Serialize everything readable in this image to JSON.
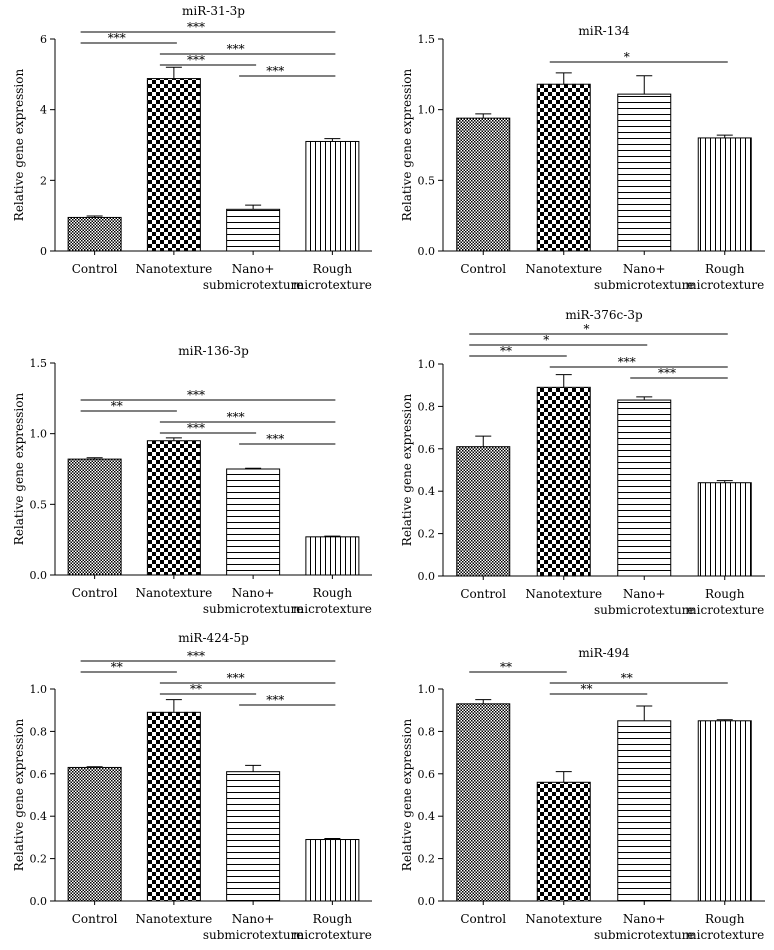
{
  "chart_data": [
    {
      "type": "bar",
      "title": "miR-31-3p",
      "ylabel": "Relative gene expression",
      "categories": [
        "Control",
        "Nanotexture",
        "Nano+\nsubmicrotexture",
        "Rough\nmicrotexture"
      ],
      "values": [
        0.95,
        4.88,
        1.18,
        3.1
      ],
      "errors": [
        0.04,
        0.32,
        0.12,
        0.08
      ],
      "ylim": [
        0,
        6
      ],
      "yticks": [
        "0",
        "2",
        "4",
        "6"
      ],
      "tick_values": [
        0,
        2,
        4,
        6
      ],
      "significance": [
        {
          "from": 0,
          "to": 3,
          "label": "***"
        },
        {
          "from": 0,
          "to": 1,
          "label": "***"
        },
        {
          "from": 1,
          "to": 3,
          "label": "***"
        },
        {
          "from": 1,
          "to": 2,
          "label": "***"
        },
        {
          "from": 2,
          "to": 3,
          "label": "***"
        }
      ]
    },
    {
      "type": "bar",
      "title": "miR-134",
      "ylabel": "Relative gene expression",
      "categories": [
        "Control",
        "Nanotexture",
        "Nano+\nsubmicrotexture",
        "Rough\nmicrotexture"
      ],
      "values": [
        0.94,
        1.18,
        1.11,
        0.8
      ],
      "errors": [
        0.03,
        0.08,
        0.13,
        0.02
      ],
      "ylim": [
        0,
        1.5
      ],
      "yticks": [
        "0.0",
        "0.5",
        "1.0",
        "1.5"
      ],
      "tick_values": [
        0,
        0.5,
        1.0,
        1.5
      ],
      "significance": [
        {
          "from": 1,
          "to": 3,
          "label": "*"
        }
      ]
    },
    {
      "type": "bar",
      "title": "miR-136-3p",
      "ylabel": "Relative gene expression",
      "categories": [
        "Control",
        "Nanotexture",
        "Nano+\nsubmicrotexture",
        "Rough\nmicrotexture"
      ],
      "values": [
        0.82,
        0.95,
        0.75,
        0.27
      ],
      "errors": [
        0.01,
        0.02,
        0.005,
        0.005
      ],
      "ylim": [
        0,
        1.5
      ],
      "yticks": [
        "0.0",
        "0.5",
        "1.0",
        "1.5"
      ],
      "tick_values": [
        0,
        0.5,
        1.0,
        1.5
      ],
      "significance": [
        {
          "from": 0,
          "to": 3,
          "label": "***"
        },
        {
          "from": 0,
          "to": 1,
          "label": "**"
        },
        {
          "from": 1,
          "to": 3,
          "label": "***"
        },
        {
          "from": 1,
          "to": 2,
          "label": "***"
        },
        {
          "from": 2,
          "to": 3,
          "label": "***"
        }
      ]
    },
    {
      "type": "bar",
      "title": "miR-376c-3p",
      "ylabel": "Relative gene expression",
      "categories": [
        "Control",
        "Nanotexture",
        "Nano+\nsubmicrotexture",
        "Rough\nmicrotexture"
      ],
      "values": [
        0.61,
        0.89,
        0.83,
        0.44
      ],
      "errors": [
        0.05,
        0.06,
        0.015,
        0.01
      ],
      "ylim": [
        0,
        1.0
      ],
      "yticks": [
        "0.0",
        "0.2",
        "0.4",
        "0.6",
        "0.8",
        "1.0"
      ],
      "tick_values": [
        0,
        0.2,
        0.4,
        0.6,
        0.8,
        1.0
      ],
      "significance": [
        {
          "from": 0,
          "to": 3,
          "label": "*"
        },
        {
          "from": 0,
          "to": 2,
          "label": "*"
        },
        {
          "from": 0,
          "to": 1,
          "label": "**"
        },
        {
          "from": 1,
          "to": 3,
          "label": "***"
        },
        {
          "from": 2,
          "to": 3,
          "label": "***"
        }
      ]
    },
    {
      "type": "bar",
      "title": "miR-424-5p",
      "ylabel": "Relative gene expression",
      "categories": [
        "Control",
        "Nanotexture",
        "Nano+\nsubmicrotexture",
        "Rough\nmicrotexture"
      ],
      "values": [
        0.63,
        0.89,
        0.61,
        0.29
      ],
      "errors": [
        0.003,
        0.06,
        0.03,
        0.005
      ],
      "ylim": [
        0,
        1.0
      ],
      "yticks": [
        "0.0",
        "0.2",
        "0.4",
        "0.6",
        "0.8",
        "1.0"
      ],
      "tick_values": [
        0,
        0.2,
        0.4,
        0.6,
        0.8,
        1.0
      ],
      "significance": [
        {
          "from": 0,
          "to": 3,
          "label": "***"
        },
        {
          "from": 0,
          "to": 1,
          "label": "**"
        },
        {
          "from": 1,
          "to": 3,
          "label": "***"
        },
        {
          "from": 1,
          "to": 2,
          "label": "**"
        },
        {
          "from": 2,
          "to": 3,
          "label": "***"
        }
      ]
    },
    {
      "type": "bar",
      "title": "miR-494",
      "ylabel": "Relative gene expression",
      "categories": [
        "Control",
        "Nanotexture",
        "Nano+\nsubmicrotexture",
        "Rough\nmicrotexture"
      ],
      "values": [
        0.93,
        0.56,
        0.85,
        0.85
      ],
      "errors": [
        0.02,
        0.05,
        0.07,
        0.005
      ],
      "ylim": [
        0,
        1.0
      ],
      "yticks": [
        "0.0",
        "0.2",
        "0.4",
        "0.6",
        "0.8",
        "1.0"
      ],
      "tick_values": [
        0,
        0.2,
        0.4,
        0.6,
        0.8,
        1.0
      ],
      "significance": [
        {
          "from": 0,
          "to": 1,
          "label": "**"
        },
        {
          "from": 1,
          "to": 3,
          "label": "**"
        },
        {
          "from": 1,
          "to": 2,
          "label": "**"
        }
      ]
    }
  ]
}
